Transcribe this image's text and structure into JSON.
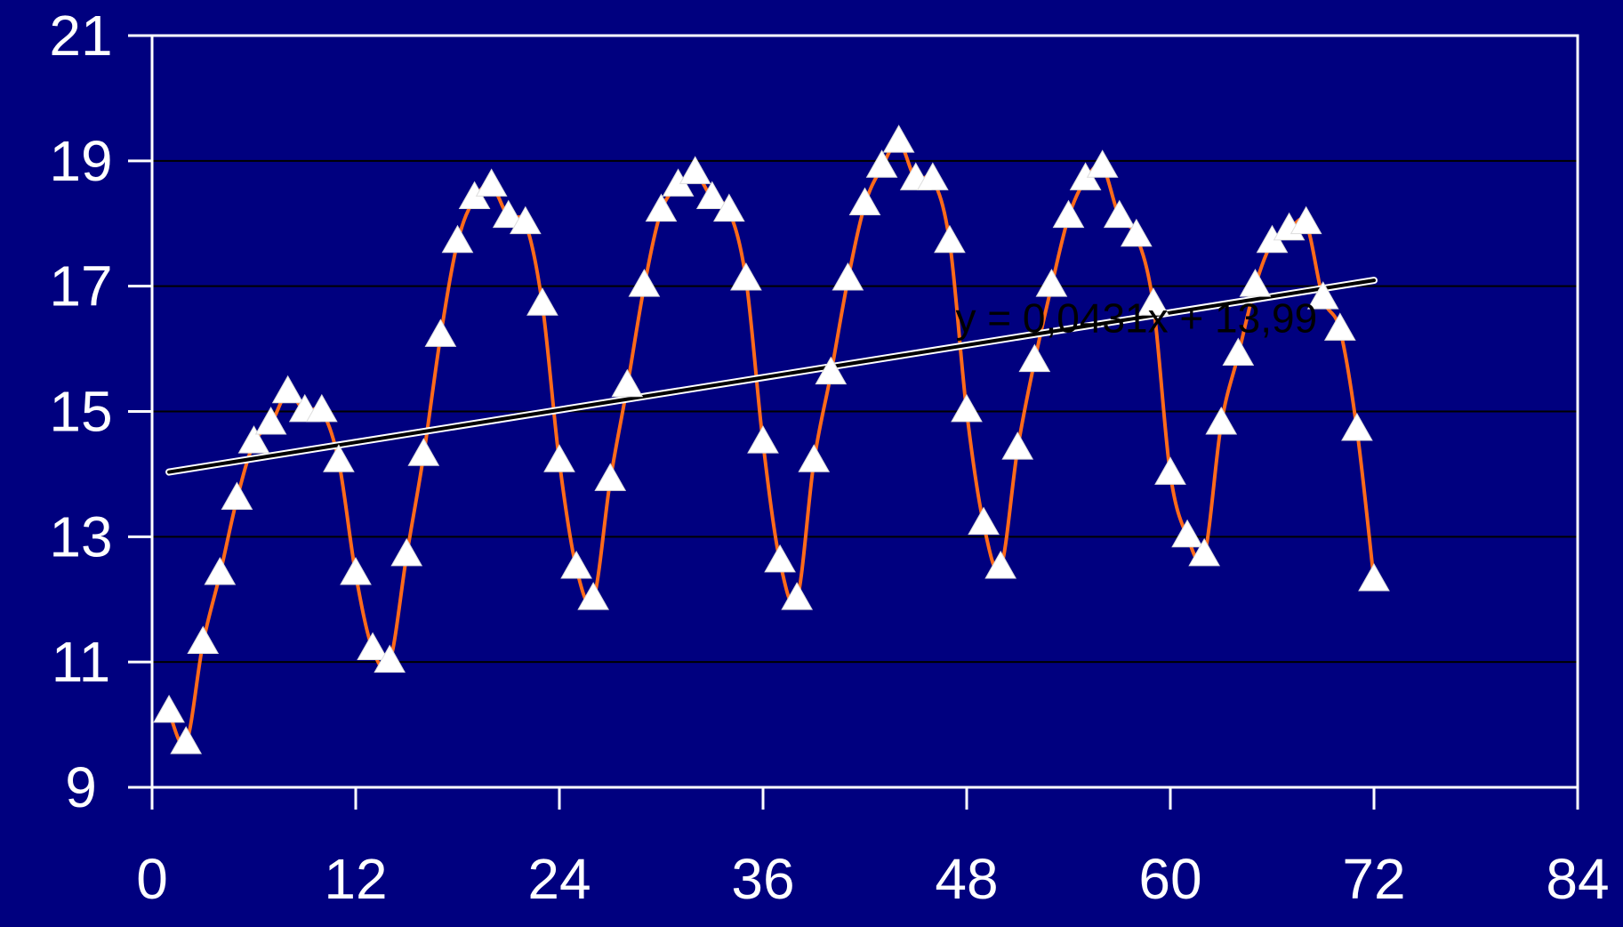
{
  "chart_data": {
    "type": "line",
    "title": "",
    "xlabel": "",
    "ylabel": "",
    "xlim": [
      0,
      84
    ],
    "ylim": [
      9,
      21
    ],
    "x_ticks": [
      0,
      12,
      24,
      36,
      48,
      60,
      72,
      84
    ],
    "y_ticks": [
      9,
      11,
      13,
      15,
      17,
      19,
      21
    ],
    "grid": true,
    "legend": "none",
    "colors": {
      "background": "#00007f",
      "plot_border": "#ffffff",
      "gridline": "#000000",
      "series_line": "#ff6a1a",
      "markers": "#ffffff",
      "trendline": "#000000",
      "trendline_outline": "#ffffff",
      "tick_labels": "#ffffff"
    },
    "series": [
      {
        "marker": "triangle",
        "smoothed": true,
        "x": [
          1,
          2,
          3,
          4,
          5,
          6,
          7,
          8,
          9,
          10,
          11,
          12,
          13,
          14,
          15,
          16,
          17,
          18,
          19,
          20,
          21,
          22,
          23,
          24,
          25,
          26,
          27,
          28,
          29,
          30,
          31,
          32,
          33,
          34,
          35,
          36,
          37,
          38,
          39,
          40,
          41,
          42,
          43,
          44,
          45,
          46,
          47,
          48,
          49,
          50,
          51,
          52,
          53,
          54,
          55,
          56,
          57,
          58,
          59,
          60,
          61,
          62,
          63,
          64,
          65,
          66,
          67,
          68,
          69,
          70,
          71,
          72
        ],
        "y": [
          10.2,
          9.7,
          11.3,
          12.4,
          13.6,
          14.5,
          14.8,
          15.3,
          15.0,
          15.0,
          14.2,
          12.4,
          11.2,
          11.0,
          12.7,
          14.3,
          16.2,
          17.7,
          18.4,
          18.6,
          18.1,
          18.0,
          16.7,
          14.2,
          12.5,
          12.0,
          13.9,
          15.4,
          17.0,
          18.2,
          18.6,
          18.8,
          18.4,
          18.2,
          17.1,
          14.5,
          12.6,
          12.0,
          14.2,
          15.6,
          17.1,
          18.3,
          18.9,
          19.3,
          18.7,
          18.7,
          17.7,
          15.0,
          13.2,
          12.5,
          14.4,
          15.8,
          17.0,
          18.1,
          18.7,
          18.9,
          18.1,
          17.8,
          16.7,
          14.0,
          13.0,
          12.7,
          14.8,
          15.9,
          17.0,
          17.7,
          17.9,
          18.0,
          16.8,
          16.3,
          14.7,
          12.3
        ]
      }
    ],
    "trendline": {
      "type": "linear",
      "slope": 0.0431,
      "intercept": 13.99,
      "x_range": [
        1,
        72
      ],
      "equation": "y = 0,0431x + 13,99",
      "label_x": 58
    }
  }
}
